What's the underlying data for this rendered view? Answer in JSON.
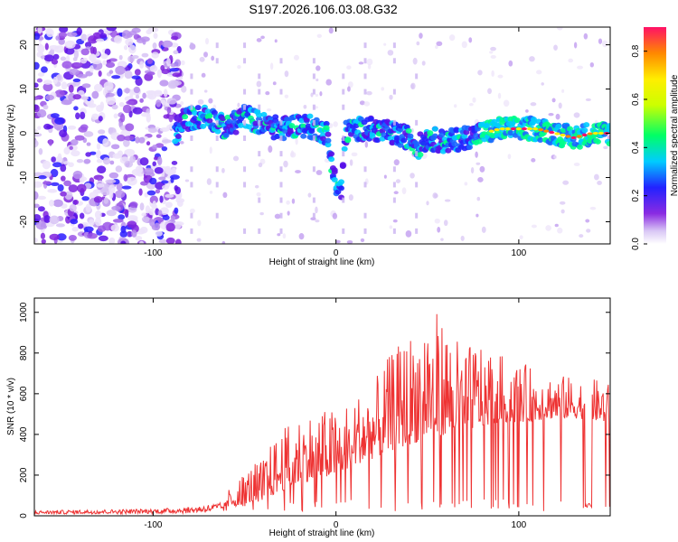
{
  "title": "S197.2026.106.03.08.G32",
  "chart_data": [
    {
      "type": "heatmap",
      "xlabel": "Height of straight line (km)",
      "ylabel": "Frequency (Hz)",
      "xlim": [
        -165,
        150
      ],
      "ylim": [
        -25,
        24
      ],
      "xticks": [
        -100,
        0,
        100
      ],
      "yticks": [
        -20,
        -10,
        0,
        10,
        20
      ],
      "xtick_labels": [
        "-100",
        "0",
        "100"
      ],
      "ytick_labels": [
        "-20",
        "-10",
        "0",
        "10",
        "20"
      ],
      "colorbar": {
        "label": "Normalized spectral amplitude",
        "range": [
          0.0,
          0.9
        ],
        "ticks": [
          "0.0",
          "0.2",
          "0.4",
          "0.6",
          "0.8"
        ],
        "tick_values": [
          0.0,
          0.2,
          0.4,
          0.6,
          0.8
        ]
      },
      "ridge": {
        "description_points_x": [
          -85,
          -70,
          -60,
          -50,
          -40,
          -30,
          -20,
          -10,
          -5,
          0,
          3,
          5,
          10,
          20,
          30,
          40,
          45,
          50,
          60,
          70,
          80,
          90,
          100,
          110,
          120,
          130,
          140,
          150
        ],
        "description_points_y": [
          3,
          4,
          1,
          4,
          2,
          1,
          2,
          1,
          0,
          -12,
          -13,
          0,
          1,
          1,
          0,
          -1,
          -3,
          -1,
          -2,
          -1,
          0,
          1,
          1,
          1,
          0,
          -1,
          0,
          0
        ]
      }
    },
    {
      "type": "line",
      "xlabel": "Height of straight line (km)",
      "ylabel": "SNR (10 * v/v)",
      "xlim": [
        -165,
        150
      ],
      "ylim": [
        0,
        1070
      ],
      "xticks": [
        -100,
        0,
        100
      ],
      "yticks": [
        0,
        200,
        400,
        600,
        800,
        1000
      ],
      "xtick_labels": [
        "-100",
        "0",
        "100"
      ],
      "ytick_labels": [
        "0",
        "200",
        "400",
        "600",
        "800",
        "1000"
      ],
      "series": [
        {
          "name": "SNR",
          "color": "#ee3333",
          "envelope_x": [
            -165,
            -100,
            -80,
            -60,
            -50,
            -40,
            -30,
            -20,
            -10,
            0,
            10,
            20,
            30,
            40,
            50,
            60,
            70,
            80,
            90,
            100,
            110,
            120,
            130,
            140,
            150
          ],
          "envelope_peak": [
            40,
            50,
            60,
            120,
            220,
            300,
            420,
            500,
            520,
            530,
            600,
            650,
            800,
            900,
            1050,
            960,
            820,
            880,
            800,
            760,
            720,
            700,
            680,
            680,
            650
          ],
          "envelope_base": [
            15,
            20,
            25,
            40,
            60,
            80,
            120,
            160,
            180,
            200,
            250,
            280,
            320,
            350,
            380,
            400,
            420,
            440,
            460,
            460,
            470,
            480,
            480,
            470,
            460
          ]
        }
      ]
    }
  ]
}
